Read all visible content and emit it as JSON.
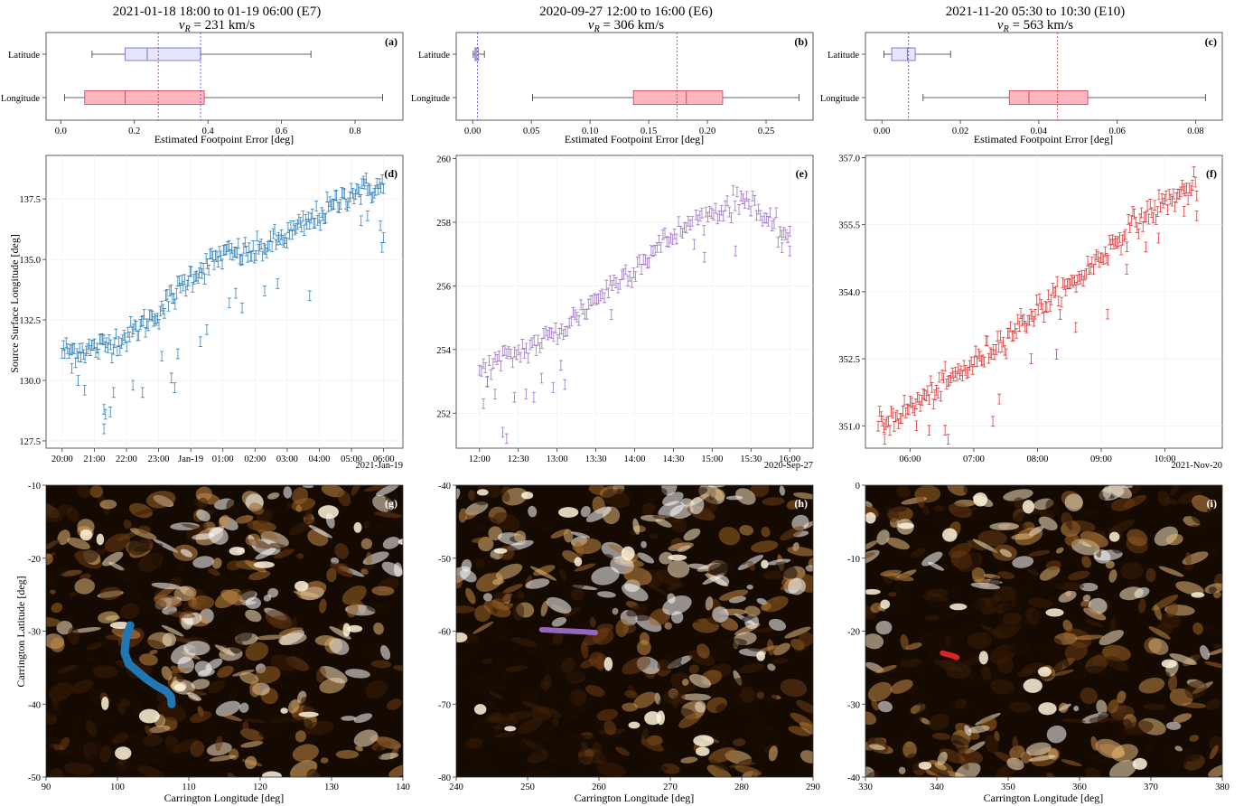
{
  "columns": [
    {
      "title": "2021-01-18 18:00 to 01-19 06:00 (E7)",
      "speed_label": "v",
      "speed_sub": "R",
      "speed_value": " = 231 km/s",
      "color": "#1f77b4",
      "box_fill": "#ffb6c1",
      "lat_fill": "#e6e6fa",
      "date_label": "2021-Jan-19"
    },
    {
      "title": "2020-09-27 12:00 to 16:00 (E6)",
      "speed_label": "v",
      "speed_sub": "R",
      "speed_value": " = 306 km/s",
      "color": "#9467bd",
      "box_fill": "#ffb6c1",
      "lat_fill": "#e6e6fa",
      "date_label": "2020-Sep-27"
    },
    {
      "title": "2021-11-20 05:30 to 10:30 (E10)",
      "speed_label": "v",
      "speed_sub": "R",
      "speed_value": " = 563 km/s",
      "color": "#d62728",
      "box_fill": "#ffb6c1",
      "lat_fill": "#e6e6fa",
      "date_label": "2021-Nov-20"
    }
  ],
  "labels": {
    "box_xlabel": "Estimated Footpoint Error [deg]",
    "box_cat_lat": "Latitude",
    "box_cat_lon": "Longitude",
    "ts_ylabel": "Source Surface Longitude [deg]",
    "map_xlabel": "Carrington Longitude [deg]",
    "map_ylabel": "Carrington Latitude [deg]"
  },
  "chart_data": [
    {
      "panel": "(a)",
      "type": "box",
      "xlabel": "Estimated Footpoint Error [deg]",
      "xlim": [
        -0.04,
        0.93
      ],
      "xticks": [
        "0.0",
        "0.2",
        "0.4",
        "0.6",
        "0.8"
      ],
      "xtick_values": [
        0,
        0.2,
        0.4,
        0.6,
        0.8
      ],
      "boxes": [
        {
          "name": "Latitude",
          "whislo": 0.085,
          "q1": 0.175,
          "med": 0.235,
          "q3": 0.38,
          "whishi": 0.68
        },
        {
          "name": "Longitude",
          "whislo": 0.01,
          "q1": 0.065,
          "med": 0.175,
          "q3": 0.39,
          "whishi": 0.875
        }
      ],
      "vlines": [
        {
          "x": 0.265,
          "color": "#d62728"
        },
        {
          "x": 0.38,
          "color": "#4444cc"
        }
      ]
    },
    {
      "panel": "(b)",
      "type": "box",
      "xlabel": "Estimated Footpoint Error [deg]",
      "xlim": [
        -0.014,
        0.29
      ],
      "xticks": [
        "0.00",
        "0.05",
        "0.10",
        "0.15",
        "0.20",
        "0.25"
      ],
      "xtick_values": [
        0,
        0.05,
        0.1,
        0.15,
        0.2,
        0.25
      ],
      "boxes": [
        {
          "name": "Latitude",
          "whislo": 0.0005,
          "q1": 0.002,
          "med": 0.003,
          "q3": 0.005,
          "whishi": 0.01
        },
        {
          "name": "Longitude",
          "whislo": 0.051,
          "q1": 0.137,
          "med": 0.182,
          "q3": 0.213,
          "whishi": 0.278
        }
      ],
      "vlines": [
        {
          "x": 0.174,
          "color": "#d62728"
        },
        {
          "x": 0.004,
          "color": "#4444cc"
        }
      ]
    },
    {
      "panel": "(c)",
      "type": "box",
      "xlabel": "Estimated Footpoint Error [deg]",
      "xlim": [
        -0.0042,
        0.0868
      ],
      "xticks": [
        "0.00",
        "0.02",
        "0.04",
        "0.06",
        "0.08"
      ],
      "xtick_values": [
        0,
        0.02,
        0.04,
        0.06,
        0.08
      ],
      "boxes": [
        {
          "name": "Latitude",
          "whislo": 0.0005,
          "q1": 0.0025,
          "med": 0.0065,
          "q3": 0.0085,
          "whishi": 0.0175
        },
        {
          "name": "Longitude",
          "whislo": 0.0105,
          "q1": 0.0325,
          "med": 0.0375,
          "q3": 0.0525,
          "whishi": 0.0825
        }
      ],
      "vlines": [
        {
          "x": 0.0448,
          "color": "#d62728"
        },
        {
          "x": 0.0068,
          "color": "#4444cc"
        }
      ]
    },
    {
      "panel": "(d)",
      "type": "scatter",
      "ylabel": "Source Surface Longitude [deg]",
      "xlim": [
        19.5,
        30.6
      ],
      "ylim": [
        127.2,
        139.3
      ],
      "xticks": [
        "20:00",
        "21:00",
        "22:00",
        "23:00",
        "Jan-19",
        "01:00",
        "02:00",
        "03:00",
        "04:00",
        "05:00",
        "06:00"
      ],
      "xtick_values": [
        20,
        21,
        22,
        23,
        24,
        25,
        26,
        27,
        28,
        29,
        30
      ],
      "yticks": [
        "127.5",
        "130.0",
        "132.5",
        "135.0",
        "137.5"
      ],
      "ytick_values": [
        127.5,
        130,
        132.5,
        135,
        137.5
      ],
      "trend": [
        [
          20,
          131.2
        ],
        [
          21,
          131.3
        ],
        [
          22,
          131.8
        ],
        [
          23,
          132.8
        ],
        [
          24,
          134.3
        ],
        [
          25,
          135.2
        ],
        [
          26,
          135.3
        ],
        [
          27,
          136.0
        ],
        [
          28,
          136.8
        ],
        [
          29,
          137.8
        ],
        [
          30,
          138.0
        ]
      ],
      "outliers": [
        [
          20.3,
          130.5
        ],
        [
          20.5,
          130.0
        ],
        [
          20.7,
          129.6
        ],
        [
          21.3,
          128.8
        ],
        [
          21.35,
          128.6
        ],
        [
          21.5,
          128.7
        ],
        [
          21.3,
          128.0
        ],
        [
          21.6,
          129.5
        ],
        [
          22.2,
          129.8
        ],
        [
          22.5,
          129.5
        ],
        [
          23.1,
          131.0
        ],
        [
          23.4,
          130.1
        ],
        [
          23.5,
          129.7
        ],
        [
          23.6,
          131.1
        ],
        [
          24.3,
          131.6
        ],
        [
          24.5,
          132.1
        ],
        [
          25.2,
          133.2
        ],
        [
          25.4,
          133.6
        ],
        [
          25.6,
          133.0
        ],
        [
          26.3,
          133.7
        ],
        [
          26.7,
          134.0
        ],
        [
          27.7,
          133.5
        ],
        [
          29.3,
          136.6
        ],
        [
          29.5,
          136.8
        ],
        [
          29.9,
          136.4
        ],
        [
          30.0,
          135.9
        ],
        [
          29.95,
          135.5
        ]
      ],
      "noise": 0.45,
      "n_points": 240
    },
    {
      "panel": "(e)",
      "type": "scatter",
      "xlim": [
        11.7,
        16.3
      ],
      "ylim": [
        250.9,
        260.1
      ],
      "xticks": [
        "12:00",
        "12:30",
        "13:00",
        "13:30",
        "14:00",
        "14:30",
        "15:00",
        "15:30",
        "16:00"
      ],
      "xtick_values": [
        12,
        12.5,
        13,
        13.5,
        14,
        14.5,
        15,
        15.5,
        16
      ],
      "yticks": [
        "252",
        "254",
        "256",
        "258",
        "260"
      ],
      "ytick_values": [
        252,
        254,
        256,
        258,
        260
      ],
      "trend": [
        [
          12,
          253.3
        ],
        [
          12.5,
          253.9
        ],
        [
          13,
          254.5
        ],
        [
          13.5,
          255.6
        ],
        [
          14,
          256.6
        ],
        [
          14.5,
          257.6
        ],
        [
          15,
          258.3
        ],
        [
          15.5,
          258.8
        ],
        [
          15.7,
          257.9
        ],
        [
          16,
          257.6
        ]
      ],
      "outliers": [
        [
          12.05,
          252.3
        ],
        [
          12.1,
          253.0
        ],
        [
          12.2,
          252.6
        ],
        [
          12.3,
          251.4
        ],
        [
          12.35,
          251.2
        ],
        [
          12.45,
          252.5
        ],
        [
          12.6,
          252.6
        ],
        [
          12.7,
          252.5
        ],
        [
          12.8,
          253.1
        ],
        [
          12.95,
          252.8
        ],
        [
          13.05,
          253.5
        ],
        [
          13.1,
          252.9
        ],
        [
          13.7,
          255.1
        ],
        [
          14.9,
          256.9
        ],
        [
          15.3,
          257.1
        ],
        [
          15.9,
          257.2
        ],
        [
          16.0,
          257.1
        ]
      ],
      "noise": 0.35,
      "n_points": 160
    },
    {
      "panel": "(f)",
      "type": "scatter",
      "xlim": [
        5.3,
        10.9
      ],
      "ylim": [
        350.5,
        357.05
      ],
      "xticks": [
        "06:00",
        "07:00",
        "08:00",
        "09:00",
        "10:00"
      ],
      "xtick_values": [
        6,
        7,
        8,
        9,
        10
      ],
      "yticks": [
        "351.0",
        "352.5",
        "354.0",
        "355.5",
        "357.0"
      ],
      "ytick_values": [
        351,
        352.5,
        354,
        355.5,
        357
      ],
      "trend": [
        [
          5.5,
          351.0
        ],
        [
          6,
          351.4
        ],
        [
          6.5,
          351.9
        ],
        [
          7,
          352.4
        ],
        [
          7.5,
          353.0
        ],
        [
          8,
          353.6
        ],
        [
          8.5,
          354.1
        ],
        [
          9,
          354.8
        ],
        [
          9.5,
          355.5
        ],
        [
          10,
          356.0
        ],
        [
          10.5,
          356.4
        ]
      ],
      "outliers": [
        [
          5.6,
          350.7
        ],
        [
          6.1,
          351.0
        ],
        [
          6.3,
          350.9
        ],
        [
          6.55,
          350.9
        ],
        [
          6.6,
          350.7
        ],
        [
          7.3,
          351.1
        ],
        [
          7.4,
          351.6
        ],
        [
          7.9,
          352.5
        ],
        [
          8.3,
          352.6
        ],
        [
          8.6,
          353.2
        ],
        [
          9.1,
          353.5
        ],
        [
          9.4,
          354.5
        ],
        [
          9.7,
          355.0
        ],
        [
          9.9,
          355.2
        ],
        [
          10.3,
          355.8
        ],
        [
          10.5,
          355.7
        ]
      ],
      "noise": 0.25,
      "n_points": 220
    },
    {
      "panel": "(g)",
      "type": "image+scatter",
      "xlabel": "Carrington Longitude [deg]",
      "ylabel": "Carrington Latitude [deg]",
      "xlim": [
        90,
        140
      ],
      "ylim": [
        -50,
        -10
      ],
      "xticks": [
        "90",
        "100",
        "110",
        "120",
        "130",
        "140"
      ],
      "xtick_values": [
        90,
        100,
        110,
        120,
        130,
        140
      ],
      "yticks": [
        "-50",
        "-40",
        "-30",
        "-20",
        "-10"
      ],
      "ytick_values": [
        -50,
        -40,
        -30,
        -20,
        -10
      ],
      "track": [
        [
          101.8,
          -29.2
        ],
        [
          101.2,
          -31.0
        ],
        [
          101.0,
          -33.0
        ],
        [
          101.6,
          -34.5
        ],
        [
          102.8,
          -35.5
        ],
        [
          104.0,
          -36.5
        ],
        [
          105.5,
          -37.5
        ],
        [
          106.8,
          -38.2
        ],
        [
          107.5,
          -39.0
        ],
        [
          107.6,
          -40.0
        ]
      ],
      "track_width": 9
    },
    {
      "panel": "(h)",
      "type": "image+scatter",
      "xlabel": "Carrington Longitude [deg]",
      "xlim": [
        240,
        290
      ],
      "ylim": [
        -80,
        -40
      ],
      "xticks": [
        "240",
        "250",
        "260",
        "270",
        "280",
        "290"
      ],
      "xtick_values": [
        240,
        250,
        260,
        270,
        280,
        290
      ],
      "yticks": [
        "-80",
        "-70",
        "-60",
        "-50",
        "-40"
      ],
      "ytick_values": [
        -80,
        -70,
        -60,
        -50,
        -40
      ],
      "track": [
        [
          252.0,
          -59.8
        ],
        [
          254.0,
          -59.9
        ],
        [
          256.0,
          -60.0
        ],
        [
          258.0,
          -60.1
        ],
        [
          259.5,
          -60.2
        ]
      ],
      "track_width": 6
    },
    {
      "panel": "(i)",
      "type": "image+scatter",
      "xlabel": "Carrington Longitude [deg]",
      "xlim": [
        330,
        380
      ],
      "ylim": [
        -40,
        0
      ],
      "xticks": [
        "330",
        "340",
        "350",
        "360",
        "370",
        "380"
      ],
      "xtick_values": [
        330,
        340,
        350,
        360,
        370,
        380
      ],
      "yticks": [
        "-40",
        "-30",
        "-20",
        "-10",
        "0"
      ],
      "ytick_values": [
        -40,
        -30,
        -20,
        -10,
        0
      ],
      "track": [
        [
          340.8,
          -23.0
        ],
        [
          341.5,
          -23.2
        ],
        [
          342.3,
          -23.4
        ],
        [
          342.8,
          -23.6
        ]
      ],
      "track_width": 6
    }
  ]
}
